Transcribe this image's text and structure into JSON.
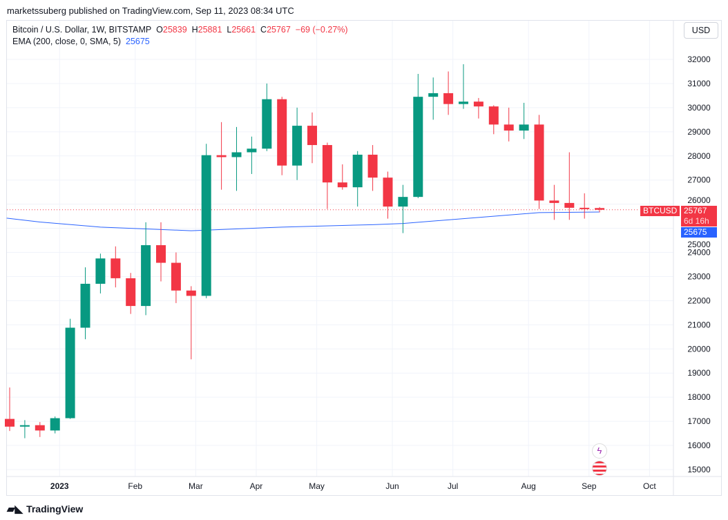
{
  "published": "marketssuberg published on TradingView.com, Sep 11, 2023 08:34 UTC",
  "legend": {
    "symbol": "Bitcoin / U.S. Dollar, 1W, BITSTAMP",
    "o_label": "O",
    "o": "25839",
    "h_label": "H",
    "h": "25881",
    "l_label": "L",
    "l": "25661",
    "c_label": "C",
    "c": "25767",
    "change": "−69 (−0.27%)",
    "ema_label": "EMA (200, close, 0, SMA, 5)",
    "ema_value": "25675"
  },
  "currency_button": "USD",
  "price_tags": {
    "symbol": "BTCUSD",
    "price": "25767",
    "countdown": "6d 16h",
    "ema": "25675"
  },
  "brand": "TradingView",
  "colors": {
    "up": "#089981",
    "down": "#f23645",
    "ema": "#2962ff"
  },
  "chart_data": {
    "type": "candlestick",
    "y_ticks": [
      "15000",
      "16000",
      "17000",
      "18000",
      "19000",
      "20000",
      "21000",
      "22000",
      "23000",
      "24000",
      "25000",
      "26000",
      "27000",
      "28000",
      "29000",
      "30000",
      "31000",
      "32000"
    ],
    "ylim": [
      15000,
      32000
    ],
    "x_ticks": [
      {
        "label": "2023",
        "index": 3.3,
        "bold": true
      },
      {
        "label": "Feb",
        "index": 8.3
      },
      {
        "label": "Mar",
        "index": 12.3
      },
      {
        "label": "Apr",
        "index": 16.3
      },
      {
        "label": "May",
        "index": 20.3
      },
      {
        "label": "Jun",
        "index": 25.3
      },
      {
        "label": "Jul",
        "index": 29.3
      },
      {
        "label": "Aug",
        "index": 34.3
      },
      {
        "label": "Sep",
        "index": 38.3
      },
      {
        "label": "Oct",
        "index": 42.3
      }
    ],
    "ohlc": [
      [
        17100,
        18400,
        16600,
        16780
      ],
      [
        16780,
        17050,
        16300,
        16840
      ],
      [
        16840,
        16970,
        16350,
        16620
      ],
      [
        16620,
        17200,
        16500,
        17130
      ],
      [
        17130,
        21250,
        17100,
        20880
      ],
      [
        20880,
        23380,
        20400,
        22700
      ],
      [
        22700,
        23950,
        22300,
        23750
      ],
      [
        23750,
        24250,
        22550,
        22930
      ],
      [
        22930,
        23150,
        21450,
        21780
      ],
      [
        21780,
        25250,
        21400,
        24300
      ],
      [
        24300,
        25250,
        22800,
        23570
      ],
      [
        23570,
        24000,
        21900,
        22420
      ],
      [
        22420,
        22600,
        19570,
        22200
      ],
      [
        22200,
        28500,
        22100,
        28030
      ],
      [
        28030,
        29400,
        26600,
        27950
      ],
      [
        27950,
        29200,
        26550,
        28150
      ],
      [
        28150,
        28800,
        27250,
        28300
      ],
      [
        28300,
        31000,
        28200,
        30350
      ],
      [
        30350,
        30450,
        27200,
        27600
      ],
      [
        27600,
        30000,
        27000,
        29250
      ],
      [
        29250,
        29800,
        27700,
        28450
      ],
      [
        28450,
        28550,
        25800,
        26900
      ],
      [
        26900,
        27650,
        26600,
        26700
      ],
      [
        26700,
        28200,
        25900,
        28050
      ],
      [
        28050,
        28450,
        26550,
        27100
      ],
      [
        27100,
        27350,
        25400,
        25900
      ],
      [
        25900,
        26800,
        24800,
        26300
      ],
      [
        26300,
        31400,
        26250,
        30450
      ],
      [
        30450,
        31250,
        29500,
        30600
      ],
      [
        30600,
        31500,
        29700,
        30150
      ],
      [
        30150,
        31800,
        29950,
        30250
      ],
      [
        30250,
        30400,
        29550,
        30050
      ],
      [
        30050,
        30100,
        28900,
        29300
      ],
      [
        29300,
        30000,
        28600,
        29050
      ],
      [
        29050,
        30200,
        28700,
        29300
      ],
      [
        29300,
        29700,
        25800,
        26150
      ],
      [
        26150,
        26800,
        25350,
        26050
      ],
      [
        26050,
        28150,
        25350,
        25850
      ],
      [
        25850,
        26450,
        25400,
        25840
      ],
      [
        25839,
        25881,
        25661,
        25767
      ]
    ],
    "ema": [
      [
        -0.2,
        25420
      ],
      [
        2,
        25260
      ],
      [
        6,
        25050
      ],
      [
        12,
        24900
      ],
      [
        18,
        25050
      ],
      [
        24,
        25150
      ],
      [
        26,
        25200
      ],
      [
        31,
        25450
      ],
      [
        35,
        25650
      ],
      [
        39,
        25675
      ]
    ],
    "last_price": 25767
  }
}
